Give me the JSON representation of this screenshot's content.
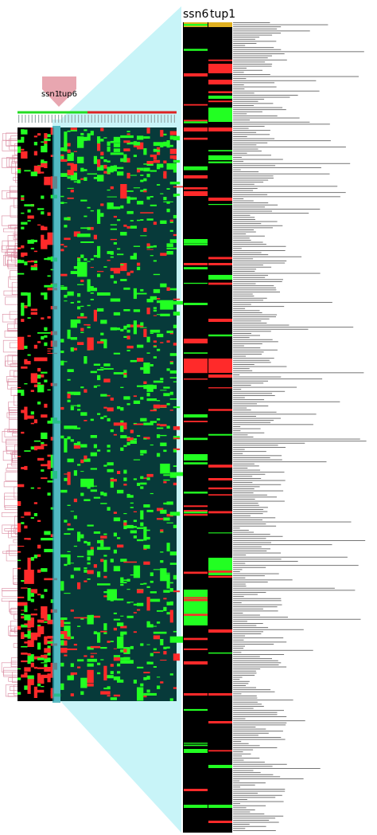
{
  "labels": {
    "ssn1": "ssn1",
    "tup6": "tup6",
    "ssn6": "ssn6",
    "tup1": "tup1"
  },
  "colors": {
    "induced": "#ff2a2a",
    "repressed": "#22ff22",
    "background": "#000000",
    "teal_panel": "#073a3a",
    "highlight": "#2aa6b0",
    "zoom_band": "#c8f4f8",
    "dendrogram": "#d98aa0",
    "arrow": "#e8a6b0"
  },
  "icons": {
    "pointer": "down-arrow-marker-icon"
  }
}
